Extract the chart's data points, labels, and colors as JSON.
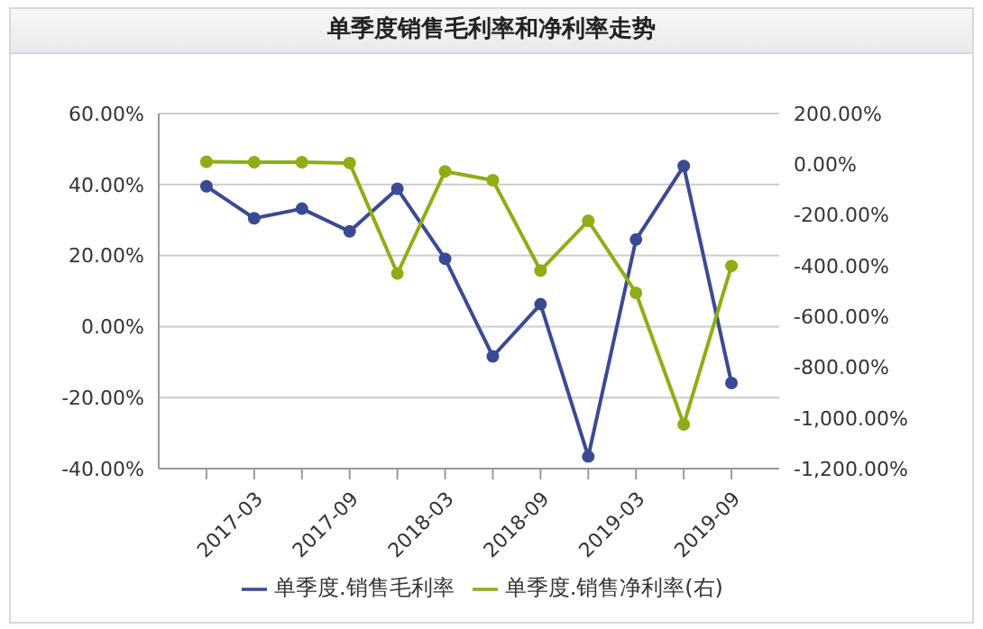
{
  "chart_data": {
    "type": "line",
    "title": "单季度销售毛利率和净利率走势",
    "categories": [
      null,
      "2017-03",
      null,
      "2017-09",
      null,
      "2018-03",
      null,
      "2018-09",
      null,
      "2019-03",
      null,
      "2019-09"
    ],
    "series": [
      {
        "name": "单季度.销售毛利率",
        "color": "#3a4a94",
        "values": [
          39.5,
          30.5,
          33.2,
          26.8,
          38.8,
          19.1,
          -8.4,
          6.3,
          -36.6,
          24.5,
          45.2,
          -15.9
        ]
      },
      {
        "name": "单季度.销售净利率(右)",
        "color": "#8fad15",
        "axis": "y2",
        "values": [
          10,
          8,
          8,
          5,
          -431,
          -28,
          -63,
          -419,
          -223,
          -507,
          -1026,
          -401
        ]
      }
    ],
    "ylim": [
      -40,
      60
    ],
    "yticks": [
      {
        "value": -40,
        "label": "-40.00%"
      },
      {
        "value": -20,
        "label": "-20.00%"
      },
      {
        "value": 0,
        "label": "0.00%"
      },
      {
        "value": 20,
        "label": "20.00%"
      },
      {
        "value": 40,
        "label": "40.00%"
      },
      {
        "value": 60,
        "label": "60.00%"
      }
    ],
    "y2lim": [
      -1200,
      200
    ],
    "y2ticks": [
      {
        "value": -1200,
        "label": "-1,200.00%"
      },
      {
        "value": -1000,
        "label": "-1,000.00%"
      },
      {
        "value": -800,
        "label": "-800.00%"
      },
      {
        "value": -600,
        "label": "-600.00%"
      },
      {
        "value": -400,
        "label": "-400.00%"
      },
      {
        "value": -200,
        "label": "-200.00%"
      },
      {
        "value": 0,
        "label": "0.00%"
      },
      {
        "value": 200,
        "label": "200.00%"
      }
    ],
    "grid": "y",
    "legend": "bottom",
    "marker": "circle",
    "line_style": "solid"
  }
}
